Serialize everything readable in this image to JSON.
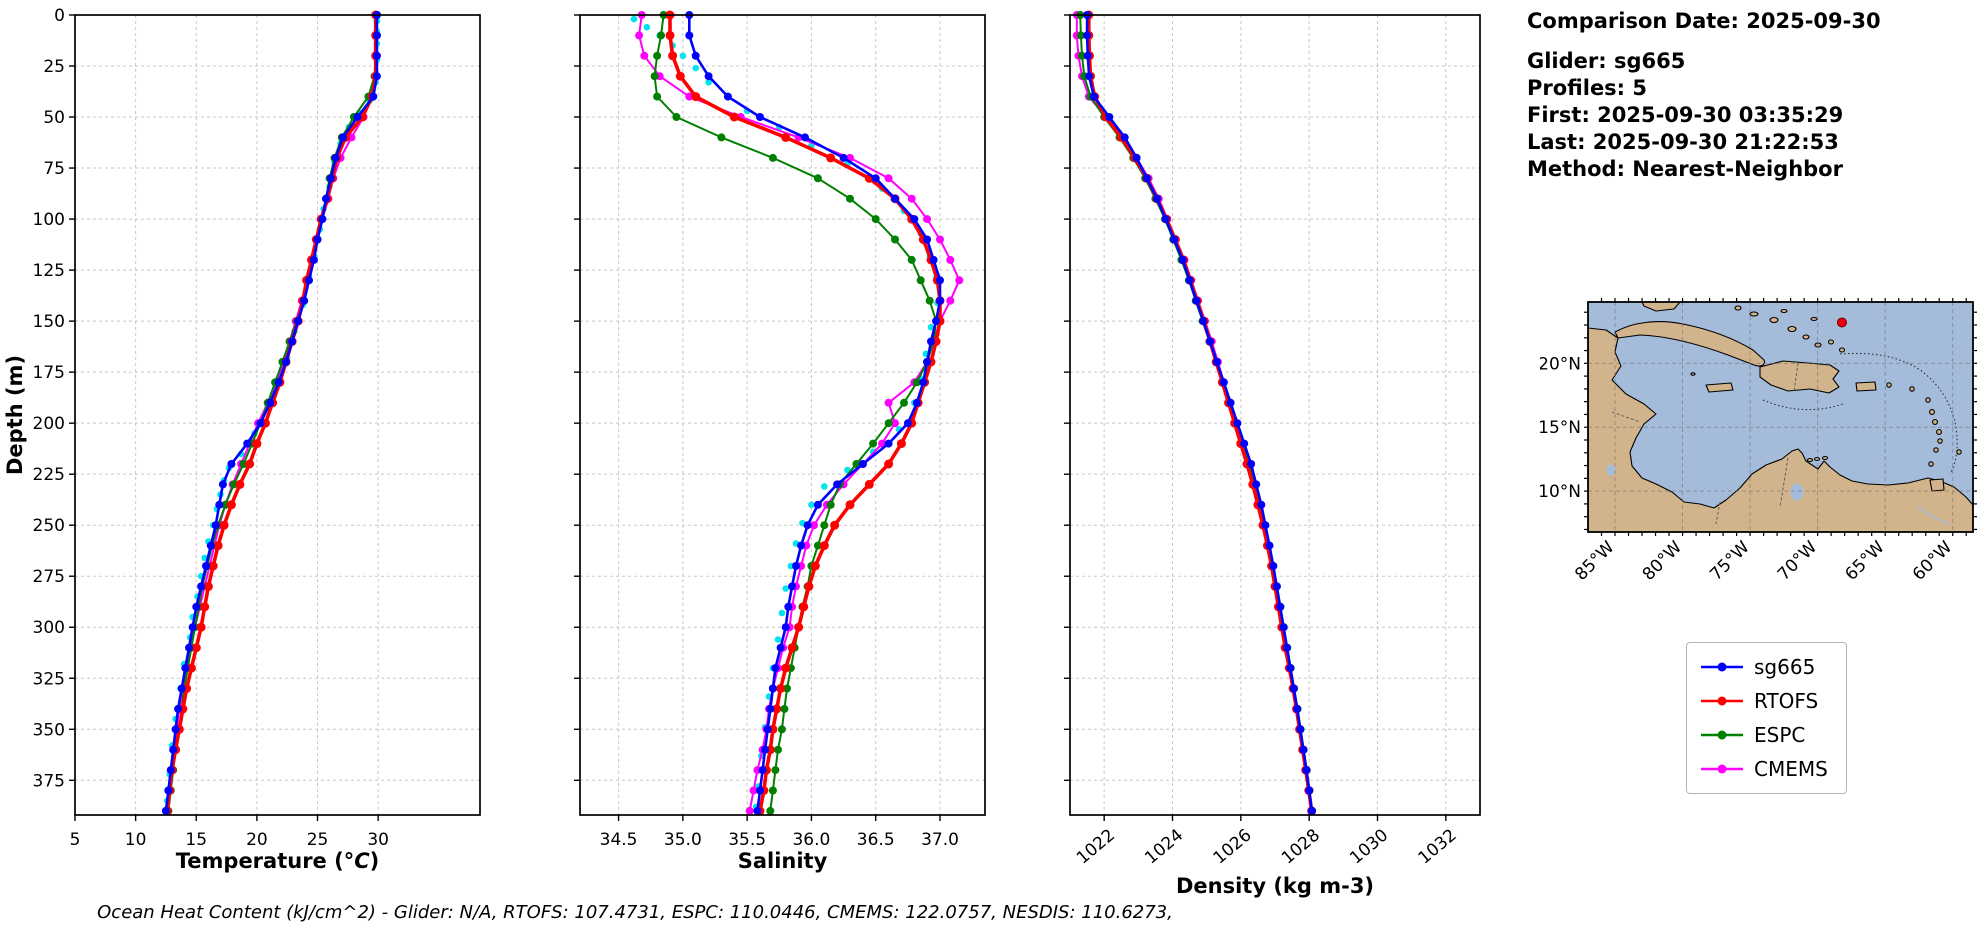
{
  "info_panel": {
    "lines": [
      "Comparison Date: 2025-09-30",
      "",
      "Glider: sg665",
      "Profiles: 5",
      "First: 2025-09-30 03:35:29",
      "Last: 2025-09-30 21:22:53",
      "Method: Nearest-Neighbor"
    ]
  },
  "legend": {
    "items": [
      {
        "label": "sg665",
        "color": "#0000ff"
      },
      {
        "label": "RTOFS",
        "color": "#ff0000"
      },
      {
        "label": "ESPC",
        "color": "#008000"
      },
      {
        "label": "CMEMS",
        "color": "#ff00ff"
      }
    ]
  },
  "caption": "Ocean Heat Content (kJ/cm^2) - Glider: N/A,  RTOFS: 107.4731,  ESPC: 110.0446,  CMEMS: 122.0757,  NESDIS: 110.6273,",
  "map": {
    "lat_labels": [
      "20°N",
      "15°N",
      "10°N"
    ],
    "lon_labels": [
      "85°W",
      "80°W",
      "75°W",
      "70°W",
      "65°W",
      "60°W"
    ],
    "grid_lons": [
      -85,
      -80,
      -75,
      -70,
      -65,
      -60
    ],
    "grid_lats": [
      20,
      15,
      10
    ],
    "glider_marker": {
      "lon": -68.2,
      "lat": 23.2,
      "color": "#e8000b"
    }
  },
  "chart_data": {
    "type": "line",
    "ylabel": "Depth (m)",
    "ylim": [
      0,
      392
    ],
    "yticks": [
      0,
      25,
      50,
      75,
      100,
      125,
      150,
      175,
      200,
      225,
      250,
      275,
      300,
      325,
      350,
      375
    ],
    "depths": [
      0,
      10,
      20,
      30,
      40,
      50,
      60,
      70,
      80,
      90,
      100,
      110,
      120,
      130,
      140,
      150,
      160,
      170,
      180,
      190,
      200,
      210,
      220,
      230,
      240,
      250,
      260,
      270,
      280,
      290,
      300,
      310,
      320,
      330,
      340,
      350,
      360,
      370,
      380,
      390
    ],
    "charts": [
      {
        "id": "temperature",
        "title": "",
        "xlabel_parts": [
          {
            "text": "Temperature ("
          },
          {
            "text": "°C",
            "italic": true
          },
          {
            "text": ")"
          }
        ],
        "ylabel": "Depth (m)",
        "xlim": [
          5,
          38.4
        ],
        "xticks": [
          5,
          10,
          15,
          20,
          25,
          30
        ],
        "xticklabels": [
          "5",
          "10",
          "15",
          "20",
          "25",
          "30"
        ],
        "series": [
          {
            "name": "glider-raw",
            "color": "#00e5ee",
            "depths": [
              3,
              8,
              14,
              22,
              33,
              42,
              48,
              55,
              63,
              72,
              84,
              95,
              105,
              118,
              128,
              142,
              155,
              168,
              178,
              192,
              205,
              215,
              222,
              228,
              235,
              242,
              250,
              258,
              266,
              275,
              285,
              295,
              305,
              318,
              330,
              345,
              358,
              372,
              385
            ],
            "values": [
              29.9,
              29.9,
              29.9,
              29.9,
              29.8,
              29.3,
              28.5,
              27.6,
              26.9,
              26.4,
              26.0,
              25.5,
              25.2,
              24.7,
              24.3,
              23.8,
              23.1,
              22.5,
              21.9,
              20.9,
              19.8,
              18.7,
              17.7,
              17.3,
              17.0,
              16.7,
              16.4,
              16.0,
              15.7,
              15.4,
              15.1,
              14.7,
              14.5,
              14.0,
              13.7,
              13.3,
              13.0,
              12.8,
              12.6
            ]
          },
          {
            "name": "CMEMS",
            "color": "#ff00ff",
            "values": [
              29.9,
              29.9,
              29.9,
              29.8,
              29.4,
              28.8,
              27.8,
              26.9,
              26.3,
              25.9,
              25.4,
              24.9,
              24.5,
              24.1,
              23.7,
              23.2,
              22.7,
              22.2,
              21.6,
              20.9,
              20.1,
              19.4,
              18.7,
              18.0,
              17.4,
              16.9,
              16.5,
              16.1,
              15.7,
              15.3,
              14.9,
              14.5,
              14.2,
              13.9,
              13.6,
              13.4,
              13.1,
              12.9,
              12.7,
              12.5
            ]
          },
          {
            "name": "ESPC",
            "color": "#008000",
            "values": [
              29.9,
              29.9,
              29.8,
              29.7,
              29.2,
              28.0,
              27.0,
              26.4,
              26.0,
              25.7,
              25.3,
              25.0,
              24.6,
              24.2,
              23.8,
              23.3,
              22.7,
              22.1,
              21.5,
              20.9,
              20.3,
              19.6,
              18.9,
              18.1,
              17.4,
              16.8,
              16.3,
              15.9,
              15.5,
              15.2,
              14.9,
              14.6,
              14.3,
              14.0,
              13.8,
              13.6,
              13.3,
              13.1,
              12.9,
              12.7
            ]
          },
          {
            "name": "RTOFS",
            "color": "#ff0000",
            "values": [
              29.8,
              29.8,
              29.8,
              29.8,
              29.5,
              28.7,
              27.3,
              26.6,
              26.2,
              25.8,
              25.3,
              24.9,
              24.5,
              24.1,
              23.8,
              23.4,
              22.9,
              22.4,
              21.9,
              21.3,
              20.7,
              20.0,
              19.4,
              18.6,
              17.9,
              17.3,
              16.8,
              16.4,
              16.0,
              15.7,
              15.4,
              15.0,
              14.6,
              14.2,
              13.9,
              13.6,
              13.3,
              13.0,
              12.8,
              12.6
            ]
          },
          {
            "name": "sg665",
            "color": "#0000ff",
            "values": [
              29.9,
              29.9,
              29.9,
              29.9,
              29.6,
              28.3,
              27.1,
              26.5,
              26.1,
              25.7,
              25.4,
              25.0,
              24.7,
              24.3,
              23.9,
              23.4,
              22.9,
              22.4,
              21.8,
              21.1,
              20.3,
              19.2,
              17.9,
              17.2,
              16.9,
              16.6,
              16.2,
              15.8,
              15.4,
              15.0,
              14.7,
              14.4,
              14.1,
              13.8,
              13.5,
              13.3,
              13.1,
              12.9,
              12.7,
              12.5
            ]
          }
        ]
      },
      {
        "id": "salinity",
        "title": "",
        "xlabel_parts": [
          {
            "text": "Salinity"
          }
        ],
        "xlim": [
          34.2,
          37.35
        ],
        "xticks": [
          34.5,
          35.0,
          35.5,
          36.0,
          36.5,
          37.0
        ],
        "xticklabels": [
          "34.5",
          "35.0",
          "35.5",
          "36.0",
          "36.5",
          "37.0"
        ],
        "series": [
          {
            "name": "glider-raw",
            "color": "#00e5ee",
            "depths": [
              2,
              6,
              10,
              15,
              20,
              26,
              33,
              40,
              47,
              55,
              64,
              73,
              85,
              96,
              107,
              118,
              129,
              141,
              153,
              166,
              178,
              190,
              203,
              214,
              223,
              231,
              240,
              249,
              259,
              270,
              281,
              293,
              306,
              320,
              334,
              349,
              363,
              378,
              388
            ],
            "values": [
              34.62,
              34.72,
              34.82,
              34.92,
              35.0,
              35.1,
              35.2,
              35.35,
              35.5,
              35.75,
              36.0,
              36.28,
              36.55,
              36.72,
              36.85,
              36.92,
              36.97,
              36.98,
              36.93,
              36.89,
              36.85,
              36.8,
              36.68,
              36.48,
              36.28,
              36.1,
              36.0,
              35.93,
              35.88,
              35.84,
              35.8,
              35.77,
              35.74,
              35.7,
              35.67,
              35.64,
              35.61,
              35.59,
              35.57
            ]
          },
          {
            "name": "CMEMS",
            "color": "#ff00ff",
            "values": [
              34.68,
              34.66,
              34.7,
              34.82,
              35.05,
              35.45,
              35.9,
              36.3,
              36.6,
              36.78,
              36.9,
              37.0,
              37.08,
              37.15,
              37.08,
              37.0,
              36.95,
              36.9,
              36.8,
              36.6,
              36.65,
              36.55,
              36.4,
              36.25,
              36.12,
              36.02,
              35.96,
              35.92,
              35.88,
              35.85,
              35.83,
              35.78,
              35.74,
              35.7,
              35.67,
              35.65,
              35.62,
              35.58,
              35.55,
              35.52
            ]
          },
          {
            "name": "ESPC",
            "color": "#008000",
            "values": [
              34.85,
              34.83,
              34.8,
              34.78,
              34.8,
              34.95,
              35.3,
              35.7,
              36.05,
              36.3,
              36.5,
              36.65,
              36.78,
              36.85,
              36.92,
              36.97,
              36.95,
              36.9,
              36.82,
              36.72,
              36.6,
              36.48,
              36.35,
              36.22,
              36.15,
              36.1,
              36.05,
              36.0,
              35.97,
              35.93,
              35.9,
              35.87,
              35.84,
              35.81,
              35.79,
              35.77,
              35.74,
              35.72,
              35.7,
              35.68
            ]
          },
          {
            "name": "RTOFS",
            "color": "#ff0000",
            "values": [
              34.9,
              34.9,
              34.92,
              34.98,
              35.1,
              35.4,
              35.8,
              36.15,
              36.45,
              36.65,
              36.78,
              36.87,
              36.93,
              36.98,
              37.0,
              37.0,
              36.97,
              36.93,
              36.88,
              36.83,
              36.78,
              36.7,
              36.6,
              36.45,
              36.3,
              36.18,
              36.1,
              36.03,
              35.98,
              35.94,
              35.9,
              35.85,
              35.8,
              35.76,
              35.73,
              35.7,
              35.68,
              35.65,
              35.63,
              35.6
            ]
          },
          {
            "name": "sg665",
            "color": "#0000ff",
            "values": [
              35.05,
              35.05,
              35.1,
              35.2,
              35.35,
              35.6,
              35.95,
              36.25,
              36.5,
              36.65,
              36.8,
              36.9,
              36.95,
              37.0,
              37.0,
              36.97,
              36.93,
              36.9,
              36.87,
              36.82,
              36.75,
              36.6,
              36.4,
              36.2,
              36.05,
              35.97,
              35.92,
              35.88,
              35.85,
              35.82,
              35.8,
              35.76,
              35.72,
              35.7,
              35.68,
              35.66,
              35.64,
              35.62,
              35.6,
              35.58
            ]
          }
        ]
      },
      {
        "id": "density",
        "title": "",
        "xlabel_parts": [
          {
            "text": "Density (kg m-3)"
          }
        ],
        "xlim": [
          1021,
          1033
        ],
        "xticks": [
          1022,
          1024,
          1026,
          1028,
          1030,
          1032
        ],
        "xticklabels": [
          "1022",
          "1024",
          "1026",
          "1028",
          "1030",
          "1032"
        ],
        "series": [
          {
            "name": "CMEMS",
            "color": "#ff00ff",
            "values": [
              1021.2,
              1021.2,
              1021.25,
              1021.35,
              1021.55,
              1022.05,
              1022.55,
              1022.95,
              1023.3,
              1023.6,
              1023.85,
              1024.1,
              1024.35,
              1024.55,
              1024.75,
              1024.95,
              1025.15,
              1025.33,
              1025.5,
              1025.68,
              1025.86,
              1026.04,
              1026.22,
              1026.4,
              1026.56,
              1026.7,
              1026.82,
              1026.94,
              1027.05,
              1027.15,
              1027.25,
              1027.35,
              1027.45,
              1027.55,
              1027.65,
              1027.74,
              1027.83,
              1027.92,
              1028.0,
              1028.08
            ]
          },
          {
            "name": "ESPC",
            "color": "#008000",
            "values": [
              1021.3,
              1021.32,
              1021.35,
              1021.42,
              1021.6,
              1022.0,
              1022.45,
              1022.85,
              1023.2,
              1023.5,
              1023.78,
              1024.02,
              1024.26,
              1024.48,
              1024.68,
              1024.88,
              1025.08,
              1025.28,
              1025.48,
              1025.68,
              1025.88,
              1026.06,
              1026.24,
              1026.4,
              1026.56,
              1026.7,
              1026.83,
              1026.95,
              1027.06,
              1027.16,
              1027.26,
              1027.36,
              1027.46,
              1027.56,
              1027.66,
              1027.75,
              1027.84,
              1027.93,
              1028.01,
              1028.09
            ]
          },
          {
            "name": "RTOFS",
            "color": "#ff0000",
            "values": [
              1021.55,
              1021.55,
              1021.57,
              1021.6,
              1021.72,
              1022.05,
              1022.5,
              1022.9,
              1023.25,
              1023.55,
              1023.82,
              1024.08,
              1024.32,
              1024.52,
              1024.72,
              1024.92,
              1025.1,
              1025.28,
              1025.46,
              1025.64,
              1025.82,
              1026.0,
              1026.18,
              1026.35,
              1026.5,
              1026.65,
              1026.78,
              1026.9,
              1027.0,
              1027.1,
              1027.2,
              1027.3,
              1027.42,
              1027.53,
              1027.63,
              1027.72,
              1027.81,
              1027.9,
              1027.99,
              1028.07
            ]
          },
          {
            "name": "sg665",
            "color": "#0000ff",
            "values": [
              1021.5,
              1021.5,
              1021.52,
              1021.56,
              1021.7,
              1022.15,
              1022.6,
              1022.95,
              1023.25,
              1023.55,
              1023.8,
              1024.05,
              1024.3,
              1024.5,
              1024.7,
              1024.9,
              1025.1,
              1025.3,
              1025.5,
              1025.7,
              1025.9,
              1026.1,
              1026.3,
              1026.45,
              1026.6,
              1026.72,
              1026.84,
              1026.95,
              1027.05,
              1027.15,
              1027.25,
              1027.35,
              1027.45,
              1027.55,
              1027.65,
              1027.74,
              1027.83,
              1027.92,
              1028.0,
              1028.08
            ]
          }
        ]
      }
    ]
  }
}
